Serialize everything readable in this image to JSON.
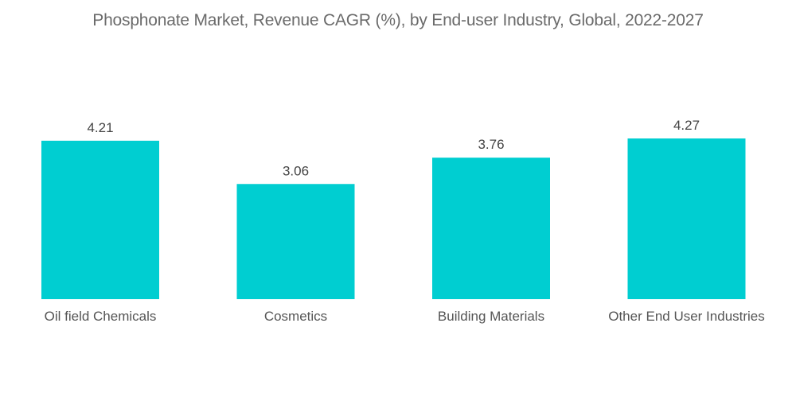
{
  "chart_data": {
    "type": "bar",
    "title": "Phosphonate Market, Revenue CAGR (%), by End-user Industry, Global, 2022-2027",
    "xlabel": "",
    "ylabel": "",
    "categories": [
      "Oil field Chemicals",
      "Cosmetics",
      "Building Materials",
      "Other End User Industries"
    ],
    "values": [
      4.21,
      3.06,
      3.76,
      4.27
    ],
    "value_labels": [
      "4.21",
      "3.06",
      "3.76",
      "4.27"
    ],
    "ylim": [
      0,
      4.27
    ],
    "grid": false,
    "legend": "none",
    "bar_color": "#00CED1"
  }
}
